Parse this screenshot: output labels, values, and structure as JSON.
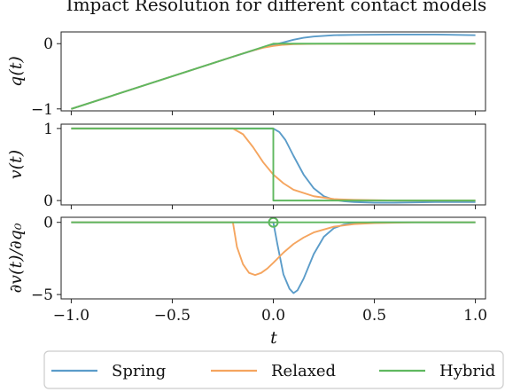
{
  "chart_data": {
    "type": "line",
    "title": "Impact Resolution for different contact models",
    "shared_xlabel": "t",
    "xlim": [
      -1.05,
      1.05
    ],
    "xticks": [
      -1.0,
      -0.5,
      0.0,
      0.5,
      1.0
    ],
    "xtick_labels": [
      "−1.0",
      "−0.5",
      "0.0",
      "0.5",
      "1.0"
    ],
    "legend": {
      "placement": "bottom-center",
      "entries": [
        {
          "name": "Spring",
          "color": "#5b9cc9"
        },
        {
          "name": "Relaxed",
          "color": "#f5a55f"
        },
        {
          "name": "Hybrid",
          "color": "#5fb85f"
        }
      ]
    },
    "subplots": [
      {
        "ylabel": "q(t)",
        "ylim": [
          -1.03,
          0.18
        ],
        "yticks": [
          0,
          -1
        ],
        "ytick_labels": [
          "0",
          "−1"
        ],
        "series": [
          {
            "name": "Spring",
            "color": "#5b9cc9",
            "x": [
              -1.0,
              -0.2,
              -0.1,
              -0.05,
              0.0,
              0.05,
              0.1,
              0.15,
              0.2,
              0.3,
              0.4,
              0.6,
              0.8,
              1.0
            ],
            "y": [
              -1.0,
              -0.2,
              -0.105,
              -0.06,
              -0.02,
              0.02,
              0.06,
              0.09,
              0.11,
              0.13,
              0.135,
              0.14,
              0.14,
              0.13
            ]
          },
          {
            "name": "Relaxed",
            "color": "#f5a55f",
            "x": [
              -1.0,
              -0.2,
              -0.15,
              -0.1,
              -0.05,
              0.0,
              0.05,
              0.1,
              0.2,
              0.4,
              0.6,
              1.0
            ],
            "y": [
              -1.0,
              -0.2,
              -0.15,
              -0.103,
              -0.063,
              -0.035,
              -0.017,
              -0.008,
              -0.002,
              0.0,
              0.0,
              0.0
            ]
          },
          {
            "name": "Hybrid",
            "color": "#5fb85f",
            "x": [
              -1.0,
              0.0,
              1.0
            ],
            "y": [
              -1.0,
              0.0,
              0.0
            ]
          }
        ]
      },
      {
        "ylabel": "v(t)",
        "ylim": [
          -0.06,
          1.06
        ],
        "yticks": [
          1,
          0
        ],
        "ytick_labels": [
          "1",
          "0"
        ],
        "series": [
          {
            "name": "Spring",
            "color": "#5b9cc9",
            "x": [
              -1.0,
              0.0,
              0.03,
              0.06,
              0.1,
              0.15,
              0.2,
              0.25,
              0.3,
              0.35,
              0.4,
              0.5,
              0.6,
              0.8,
              1.0
            ],
            "y": [
              1.0,
              1.0,
              0.95,
              0.84,
              0.62,
              0.36,
              0.17,
              0.06,
              0.01,
              -0.01,
              -0.02,
              -0.03,
              -0.03,
              -0.02,
              -0.02
            ]
          },
          {
            "name": "Relaxed",
            "color": "#f5a55f",
            "x": [
              -1.0,
              -0.2,
              -0.15,
              -0.1,
              -0.05,
              0.0,
              0.05,
              0.1,
              0.2,
              0.3,
              0.4,
              0.6,
              1.0
            ],
            "y": [
              1.0,
              1.0,
              0.92,
              0.74,
              0.53,
              0.36,
              0.24,
              0.15,
              0.06,
              0.02,
              0.01,
              0.0,
              0.0
            ]
          },
          {
            "name": "Hybrid",
            "color": "#5fb85f",
            "x": [
              -1.0,
              0.0,
              0.0,
              1.0
            ],
            "y": [
              1.0,
              1.0,
              0.0,
              0.0
            ]
          }
        ]
      },
      {
        "ylabel": "∂v(t)/∂q₀",
        "ylim": [
          -5.3,
          0.35
        ],
        "yticks": [
          0,
          -5
        ],
        "ytick_labels": [
          "0",
          "−5"
        ],
        "marker": {
          "series": "Hybrid",
          "x": 0.0,
          "y": 0.0,
          "shape": "open-circle"
        },
        "series": [
          {
            "name": "Spring",
            "color": "#5b9cc9",
            "x": [
              -1.0,
              0.0,
              0.02,
              0.05,
              0.08,
              0.1,
              0.12,
              0.15,
              0.2,
              0.25,
              0.3,
              0.35,
              0.4,
              0.5,
              0.6,
              0.8,
              1.0
            ],
            "y": [
              0.0,
              0.0,
              -1.5,
              -3.6,
              -4.6,
              -4.9,
              -4.7,
              -3.9,
              -2.2,
              -1.0,
              -0.4,
              -0.15,
              -0.05,
              0.0,
              0.0,
              0.0,
              0.0
            ]
          },
          {
            "name": "Relaxed",
            "color": "#f5a55f",
            "x": [
              -1.0,
              -0.2,
              -0.18,
              -0.15,
              -0.12,
              -0.09,
              -0.06,
              -0.03,
              0.0,
              0.05,
              0.1,
              0.15,
              0.2,
              0.3,
              0.4,
              0.5,
              0.7,
              1.0
            ],
            "y": [
              0.0,
              0.0,
              -1.7,
              -2.9,
              -3.5,
              -3.65,
              -3.5,
              -3.2,
              -2.8,
              -2.1,
              -1.5,
              -1.05,
              -0.7,
              -0.3,
              -0.12,
              -0.05,
              0.0,
              0.0
            ]
          },
          {
            "name": "Hybrid",
            "color": "#5fb85f",
            "x": [
              -1.0,
              1.0
            ],
            "y": [
              0.0,
              0.0
            ]
          }
        ]
      }
    ]
  }
}
